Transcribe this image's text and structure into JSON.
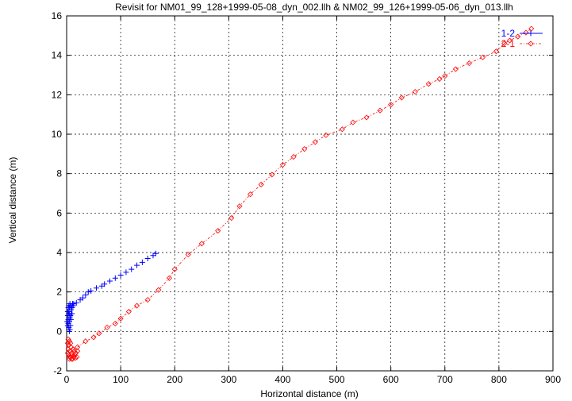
{
  "chart_data": {
    "type": "scatter",
    "title": "Revisit for NM01_99_128+1999-05-08_dyn_002.llh & NM02_99_126+1999-05-06_dyn_013.llh",
    "xlabel": "Horizontal distance (m)",
    "ylabel": "Vertical distance (m)",
    "xlim": [
      0,
      900
    ],
    "ylim": [
      -2,
      16
    ],
    "xticks": [
      0,
      100,
      200,
      300,
      400,
      500,
      600,
      700,
      800,
      900
    ],
    "yticks": [
      -2,
      0,
      2,
      4,
      6,
      8,
      10,
      12,
      14,
      16
    ],
    "grid": true,
    "legend_position": "top-right",
    "series": [
      {
        "name": "1-2",
        "color": "#0000ff",
        "marker": "plus",
        "line": "none",
        "points": [
          [
            2,
            0.3
          ],
          [
            3,
            0.6
          ],
          [
            4,
            0.9
          ],
          [
            5,
            1.2
          ],
          [
            6,
            1.4
          ],
          [
            3,
            1.0
          ],
          [
            5,
            0.5
          ],
          [
            7,
            0.8
          ],
          [
            8,
            1.1
          ],
          [
            9,
            1.3
          ],
          [
            4,
            0.2
          ],
          [
            6,
            0.7
          ],
          [
            2,
            1.0
          ],
          [
            10,
            1.2
          ],
          [
            11,
            1.4
          ],
          [
            3,
            0.4
          ],
          [
            5,
            0.0
          ],
          [
            7,
            1.3
          ],
          [
            8,
            0.6
          ],
          [
            12,
            1.3
          ],
          [
            2,
            0.8
          ],
          [
            9,
            0.9
          ],
          [
            4,
            1.3
          ],
          [
            6,
            0.1
          ],
          [
            13,
            1.4
          ],
          [
            10,
            0.9
          ],
          [
            3,
            1.2
          ],
          [
            5,
            0.9
          ],
          [
            7,
            0.3
          ],
          [
            1,
            0.5
          ],
          [
            18,
            1.45
          ],
          [
            25,
            1.6
          ],
          [
            30,
            1.7
          ],
          [
            35,
            1.85
          ],
          [
            40,
            2.0
          ],
          [
            45,
            2.05
          ],
          [
            55,
            2.2
          ],
          [
            65,
            2.3
          ],
          [
            70,
            2.4
          ],
          [
            80,
            2.55
          ],
          [
            90,
            2.7
          ],
          [
            100,
            2.85
          ],
          [
            110,
            3.0
          ],
          [
            120,
            3.15
          ],
          [
            130,
            3.35
          ],
          [
            140,
            3.5
          ],
          [
            150,
            3.7
          ],
          [
            160,
            3.85
          ],
          [
            165,
            3.95
          ]
        ]
      },
      {
        "name": "2-1",
        "color": "#ff0000",
        "marker": "diamond",
        "line": "dotted",
        "cluster": [
          [
            2,
            -0.6
          ],
          [
            3,
            -0.9
          ],
          [
            4,
            -1.2
          ],
          [
            5,
            -1.4
          ],
          [
            6,
            -1.0
          ],
          [
            3,
            -0.4
          ],
          [
            7,
            -1.3
          ],
          [
            8,
            -0.8
          ],
          [
            9,
            -1.1
          ],
          [
            4,
            -0.7
          ],
          [
            6,
            -1.3
          ],
          [
            10,
            -1.2
          ],
          [
            11,
            -1.4
          ],
          [
            5,
            -0.5
          ],
          [
            12,
            -0.9
          ],
          [
            13,
            -1.3
          ],
          [
            15,
            -1.2
          ],
          [
            17,
            -1.1
          ],
          [
            19,
            -1.3
          ],
          [
            20,
            -1.0
          ],
          [
            2,
            -1.1
          ],
          [
            7,
            -0.6
          ],
          [
            14,
            -1.0
          ],
          [
            9,
            -1.4
          ],
          [
            16,
            -1.35
          ]
        ],
        "points": [
          [
            20,
            -0.8
          ],
          [
            35,
            -0.5
          ],
          [
            50,
            -0.3
          ],
          [
            60,
            -0.1
          ],
          [
            75,
            0.2
          ],
          [
            90,
            0.4
          ],
          [
            100,
            0.65
          ],
          [
            115,
            1.0
          ],
          [
            130,
            1.3
          ],
          [
            150,
            1.6
          ],
          [
            170,
            2.1
          ],
          [
            190,
            2.7
          ],
          [
            200,
            3.15
          ],
          [
            225,
            3.9
          ],
          [
            250,
            4.45
          ],
          [
            280,
            5.1
          ],
          [
            305,
            5.75
          ],
          [
            320,
            6.35
          ],
          [
            340,
            6.95
          ],
          [
            360,
            7.45
          ],
          [
            380,
            7.95
          ],
          [
            400,
            8.45
          ],
          [
            420,
            8.85
          ],
          [
            440,
            9.25
          ],
          [
            460,
            9.6
          ],
          [
            480,
            9.95
          ],
          [
            510,
            10.25
          ],
          [
            530,
            10.6
          ],
          [
            555,
            10.85
          ],
          [
            580,
            11.2
          ],
          [
            600,
            11.5
          ],
          [
            620,
            11.85
          ],
          [
            645,
            12.15
          ],
          [
            670,
            12.55
          ],
          [
            690,
            12.8
          ],
          [
            700,
            12.95
          ],
          [
            720,
            13.3
          ],
          [
            745,
            13.6
          ],
          [
            770,
            13.9
          ],
          [
            795,
            14.2
          ],
          [
            810,
            14.6
          ],
          [
            820,
            14.75
          ],
          [
            835,
            14.95
          ],
          [
            850,
            15.15
          ],
          [
            860,
            15.35
          ]
        ]
      }
    ]
  }
}
